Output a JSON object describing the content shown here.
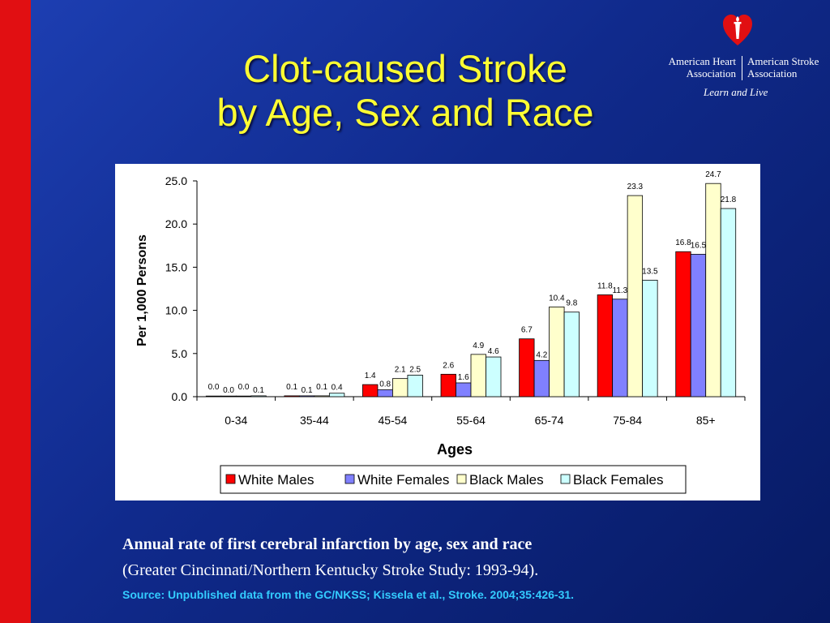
{
  "slide": {
    "title_line1": "Clot-caused Stroke",
    "title_line2": "by Age, Sex and Race",
    "accent_color": "#e10f12",
    "title_color": "#ffff33"
  },
  "logo": {
    "icon": "heart-torch-icon",
    "left_line1": "American Heart",
    "left_line2": "Association",
    "right_line1": "American Stroke",
    "right_line2": "Association",
    "tagline": "Learn and Live"
  },
  "caption": {
    "line1": "Annual rate of first cerebral infarction by age, sex and race",
    "line2": "(Greater Cincinnati/Northern Kentucky Stroke Study: 1993-94).",
    "source": "Source: Unpublished data from the GC/NKSS; Kissela et al., Stroke. 2004;35:426-31."
  },
  "chart_data": {
    "type": "bar",
    "xlabel": "Ages",
    "ylabel": "Per 1,000 Persons",
    "ylim": [
      0,
      25
    ],
    "yticks": [
      "0.0",
      "5.0",
      "10.0",
      "15.0",
      "20.0",
      "25.0"
    ],
    "grid": false,
    "legend_position": "bottom",
    "categories": [
      "0-34",
      "35-44",
      "45-54",
      "55-64",
      "65-74",
      "75-84",
      "85+"
    ],
    "series": [
      {
        "name": "White Males",
        "color": "#ff0000",
        "values": [
          0.0,
          0.1,
          1.4,
          2.6,
          6.7,
          11.8,
          16.8
        ],
        "labels": [
          "0.0",
          "0.1",
          "1.4",
          "2.6",
          "6.7",
          "11.8",
          "16.8"
        ]
      },
      {
        "name": "White Females",
        "color": "#8080ff",
        "values": [
          0.0,
          0.1,
          0.8,
          1.6,
          4.2,
          11.3,
          16.5
        ],
        "labels": [
          "0.0",
          "0.1",
          "0.8",
          "1.6",
          "4.2",
          "11.3",
          "16.5"
        ]
      },
      {
        "name": "Black Males",
        "color": "#ffffcc",
        "values": [
          0.0,
          0.1,
          2.1,
          4.9,
          10.4,
          23.3,
          24.7
        ],
        "labels": [
          "0.0",
          "0.1",
          "2.1",
          "4.9",
          "10.4",
          "23.3",
          "24.7"
        ]
      },
      {
        "name": "Black Females",
        "color": "#ccffff",
        "values": [
          0.1,
          0.4,
          2.5,
          4.6,
          9.8,
          13.5,
          21.8
        ],
        "labels": [
          "0.1",
          "0.4",
          "2.5",
          "4.6",
          "9.8",
          "13.5",
          "21.8"
        ]
      }
    ]
  }
}
